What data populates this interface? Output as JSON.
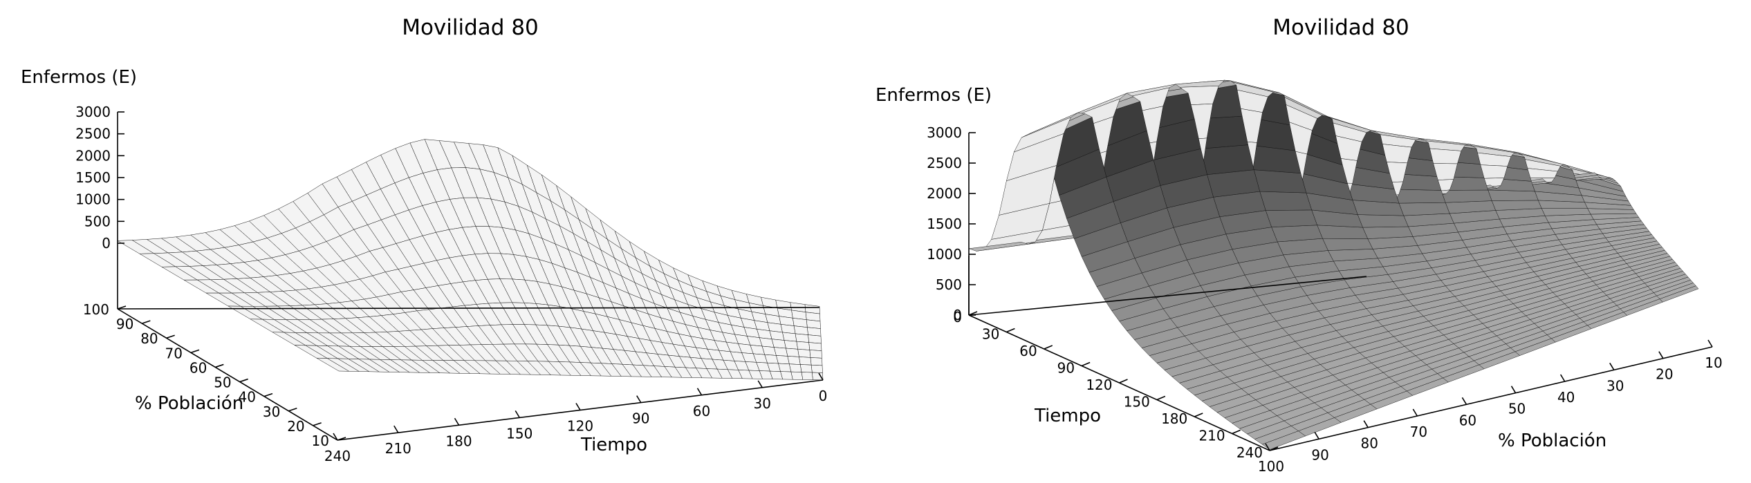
{
  "chart_data": [
    {
      "type": "surface",
      "title": "Movilidad 80",
      "zlabel": "Enfermos (E)",
      "xlabel": "Tiempo",
      "ylabel": "% Población",
      "zticks": [
        "0",
        "500",
        "1000",
        "1500",
        "2000",
        "2500",
        "3000"
      ],
      "xticks": [
        "0",
        "30",
        "60",
        "90",
        "120",
        "150",
        "180",
        "210",
        "240"
      ],
      "yticks": [
        "10",
        "20",
        "30",
        "40",
        "50",
        "60",
        "70",
        "80",
        "90",
        "100"
      ],
      "xlim": [
        0,
        240
      ],
      "ylim": [
        10,
        100
      ],
      "zlim": [
        0,
        3000
      ],
      "grid": false,
      "surface_color": "#555555",
      "peak": {
        "time": 120,
        "poblacion": 100,
        "enfermos": 3000
      }
    },
    {
      "type": "surface",
      "title": "Movilidad 80",
      "zlabel": "Enfermos (E)",
      "xlabel": "Tiempo",
      "ylabel": "% Población",
      "zticks": [
        "0",
        "500",
        "1000",
        "1500",
        "2000",
        "2500",
        "3000"
      ],
      "xticks": [
        "0",
        "30",
        "60",
        "90",
        "120",
        "150",
        "180",
        "210",
        "240"
      ],
      "yticks": [
        "10",
        "20",
        "30",
        "40",
        "50",
        "60",
        "70",
        "80",
        "90",
        "100"
      ],
      "xlim": [
        0,
        240
      ],
      "ylim": [
        10,
        100
      ],
      "zlim": [
        0,
        3000
      ],
      "grid": false,
      "surface_color": "#555555",
      "peak": {
        "time": 40,
        "poblacion": 70,
        "enfermos": 2800
      }
    }
  ]
}
